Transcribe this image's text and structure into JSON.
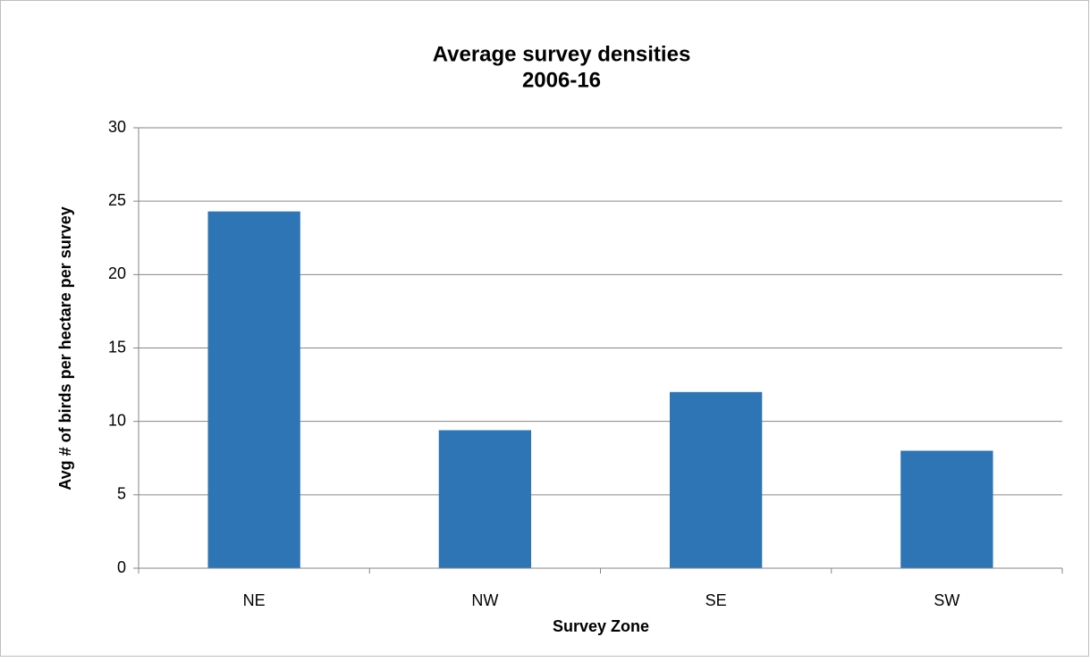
{
  "chart_data": {
    "type": "bar",
    "title": "Average survey densities",
    "subtitle": "2006-16",
    "x_label": "Survey Zone",
    "y_label": "Avg # of birds per hectare per survey",
    "categories": [
      "NE",
      "NW",
      "SE",
      "SW"
    ],
    "values": [
      24.3,
      9.4,
      12.0,
      8.0
    ],
    "color": "#2e75b6",
    "ylim": [
      0,
      30
    ],
    "yticks": [
      0,
      5,
      10,
      15,
      20,
      25,
      30
    ],
    "grid": true
  }
}
